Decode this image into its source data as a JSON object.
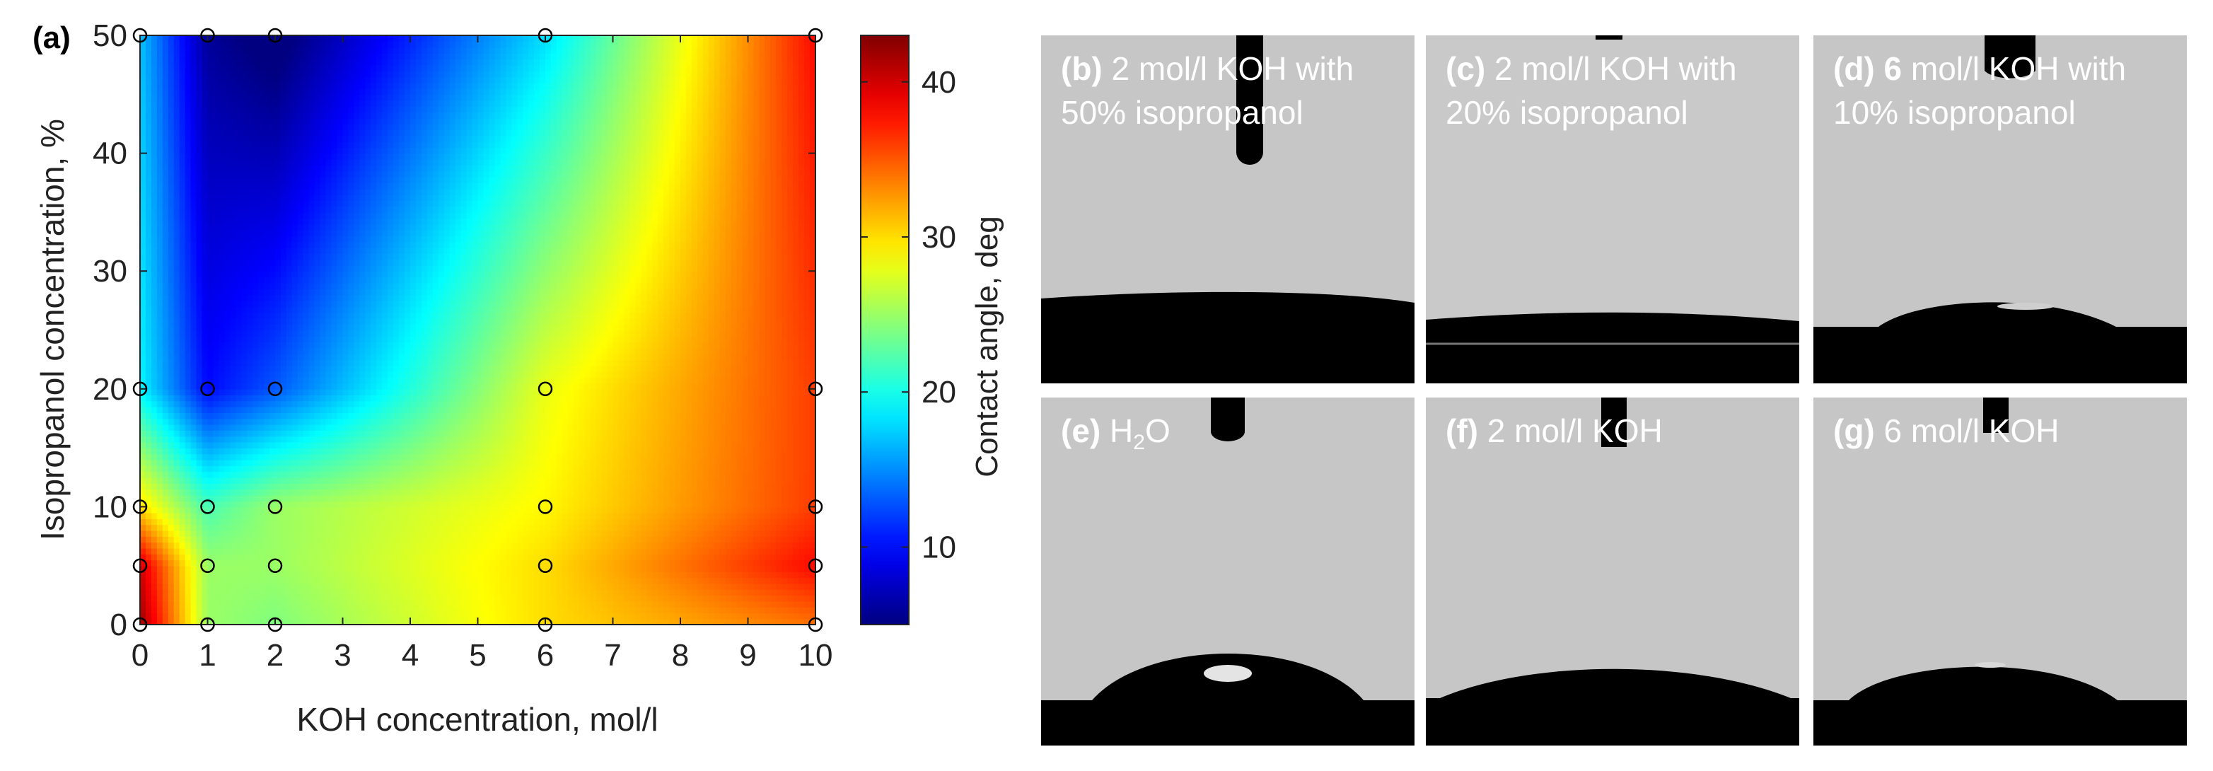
{
  "chart_data": {
    "type": "heatmap",
    "panel_label": "(a)",
    "xlabel": "KOH concentration, mol/l",
    "ylabel": "Isopropanol concentration, %",
    "colorbar_label": "Contact angle, deg",
    "xlim": [
      0,
      10
    ],
    "ylim": [
      0,
      50
    ],
    "xticks": [
      0,
      1,
      2,
      3,
      4,
      5,
      6,
      7,
      8,
      9,
      10
    ],
    "yticks": [
      0,
      10,
      20,
      30,
      40,
      50
    ],
    "clim": [
      5,
      43
    ],
    "colorbar_ticks": [
      10,
      20,
      30,
      40
    ],
    "colormap": "jet",
    "x": [
      0,
      1,
      2,
      6,
      10
    ],
    "y": [
      0,
      5,
      10,
      20,
      50
    ],
    "z": [
      [
        42,
        25,
        24,
        30,
        34
      ],
      [
        40,
        25,
        25,
        30,
        38
      ],
      [
        30,
        22,
        25,
        29,
        36
      ],
      [
        19,
        10,
        13,
        28,
        36
      ],
      [
        17,
        6,
        4,
        18,
        38
      ]
    ],
    "measured_points": [
      {
        "x": 0,
        "y": 0
      },
      {
        "x": 1,
        "y": 0
      },
      {
        "x": 2,
        "y": 0
      },
      {
        "x": 6,
        "y": 0
      },
      {
        "x": 10,
        "y": 0
      },
      {
        "x": 0,
        "y": 5
      },
      {
        "x": 1,
        "y": 5
      },
      {
        "x": 2,
        "y": 5
      },
      {
        "x": 6,
        "y": 5
      },
      {
        "x": 10,
        "y": 5
      },
      {
        "x": 0,
        "y": 10
      },
      {
        "x": 1,
        "y": 10
      },
      {
        "x": 2,
        "y": 10
      },
      {
        "x": 6,
        "y": 10
      },
      {
        "x": 10,
        "y": 10
      },
      {
        "x": 0,
        "y": 20
      },
      {
        "x": 1,
        "y": 20
      },
      {
        "x": 2,
        "y": 20
      },
      {
        "x": 6,
        "y": 20
      },
      {
        "x": 10,
        "y": 20
      },
      {
        "x": 0,
        "y": 50
      },
      {
        "x": 1,
        "y": 50
      },
      {
        "x": 2,
        "y": 50
      },
      {
        "x": 6,
        "y": 50
      },
      {
        "x": 10,
        "y": 50
      }
    ]
  },
  "photos": [
    {
      "label": "(b)",
      "line1": "2 mol/l KOH with",
      "line2": "50% isopropanol"
    },
    {
      "label": "(c)",
      "line1": "2 mol/l KOH with",
      "line2": "20% isopropanol"
    },
    {
      "label": "(d)",
      "line1_bold": "6",
      "line1": "mol/l KOH with",
      "line2": "10% isopropanol"
    },
    {
      "label": "(e)",
      "text_pre": "H",
      "text_sub": "2",
      "text_post": "O"
    },
    {
      "label": "(f)",
      "line1": "2 mol/l KOH"
    },
    {
      "label": "(g)",
      "line1": "6 mol/l KOH"
    }
  ]
}
